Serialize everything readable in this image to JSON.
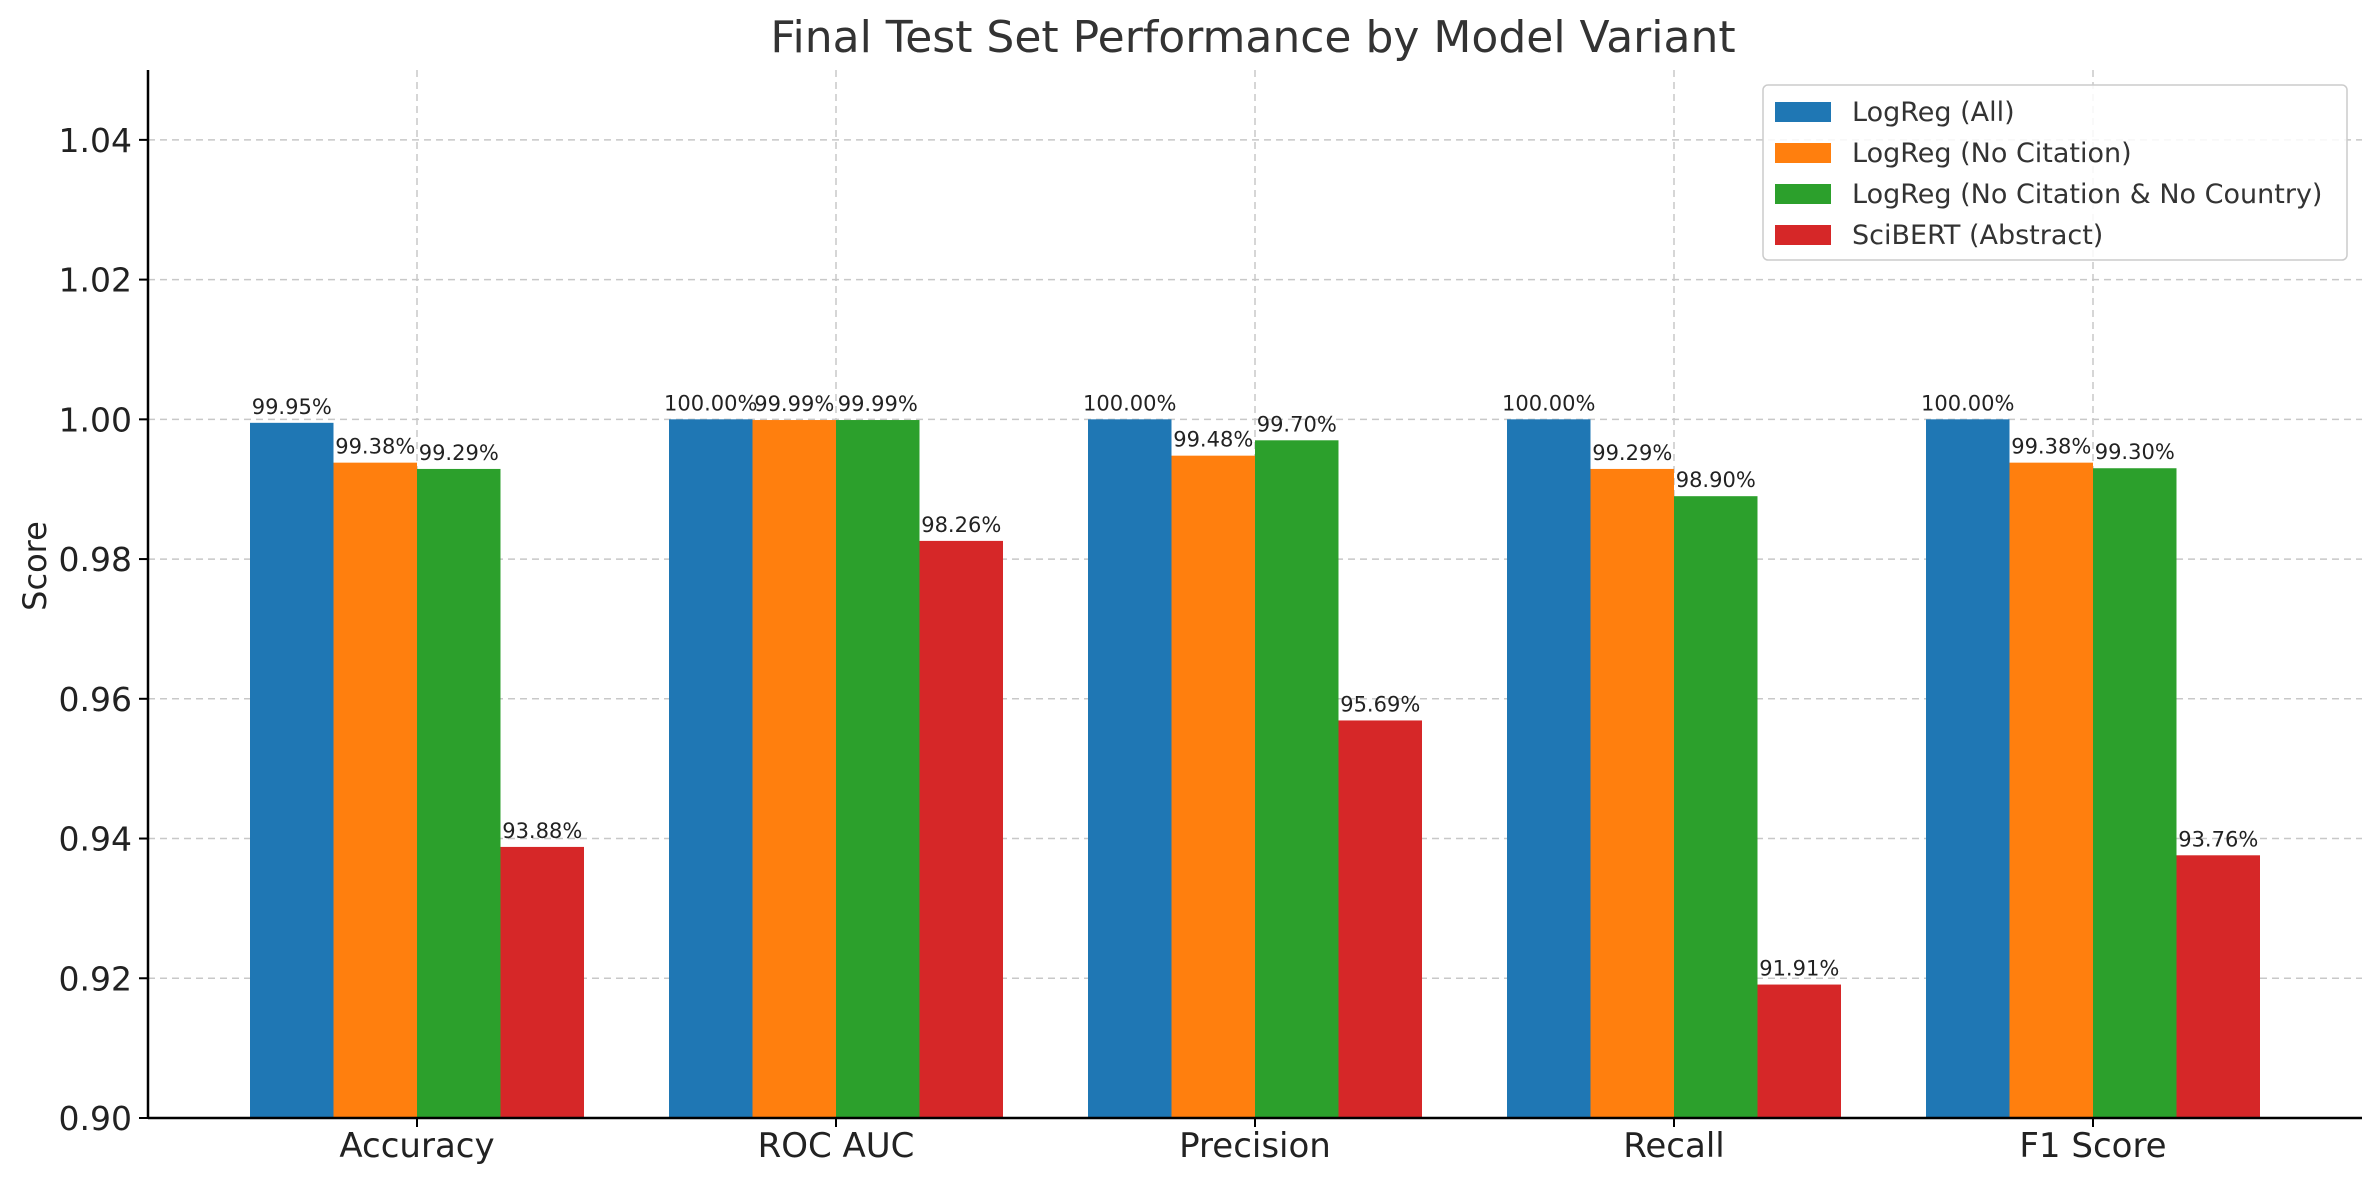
{
  "chart_data": {
    "type": "bar",
    "title": "Final Test Set Performance by Model Variant",
    "xlabel": "",
    "ylabel": "Score",
    "ylim": [
      0.9,
      1.05
    ],
    "yticks": [
      "0.90",
      "0.92",
      "0.94",
      "0.96",
      "0.98",
      "1.00",
      "1.02",
      "1.04"
    ],
    "grid": true,
    "legend_position": "top-right",
    "categories": [
      "Accuracy",
      "ROC AUC",
      "Precision",
      "Recall",
      "F1 Score"
    ],
    "series": [
      {
        "name": "LogReg (All)",
        "color": "#1f77b4",
        "values": [
          0.9995,
          1.0,
          1.0,
          1.0,
          1.0
        ],
        "labels": [
          "99.95%",
          "100.00%",
          "100.00%",
          "100.00%",
          "100.00%"
        ]
      },
      {
        "name": "LogReg (No Citation)",
        "color": "#ff7f0e",
        "values": [
          0.9938,
          0.9999,
          0.9948,
          0.9929,
          0.9938
        ],
        "labels": [
          "99.38%",
          "99.99%",
          "99.48%",
          "99.29%",
          "99.38%"
        ]
      },
      {
        "name": "LogReg (No Citation & No Country)",
        "color": "#2ca02c",
        "values": [
          0.9929,
          0.9999,
          0.997,
          0.989,
          0.993
        ],
        "labels": [
          "99.29%",
          "99.99%",
          "99.70%",
          "98.90%",
          "99.30%"
        ]
      },
      {
        "name": "SciBERT (Abstract)",
        "color": "#d62728",
        "values": [
          0.9388,
          0.9826,
          0.9569,
          0.9191,
          0.9376
        ],
        "labels": [
          "93.88%",
          "98.26%",
          "95.69%",
          "91.91%",
          "93.76%"
        ]
      }
    ]
  }
}
